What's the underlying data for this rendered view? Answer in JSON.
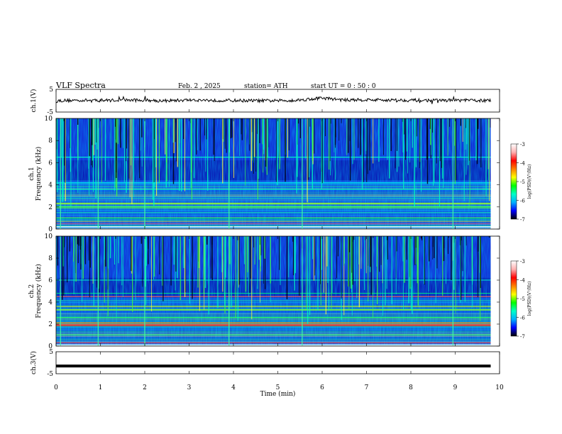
{
  "header": {
    "title": "VLF  Spectra",
    "date": "Feb. 2  , 2025",
    "station": "station= ATH",
    "start": "start  UT  =   0 : 50 : 0"
  },
  "colors": {
    "colormap": [
      "#000000",
      "#0000ff",
      "#00b0ff",
      "#00ffc8",
      "#00ff00",
      "#ffff00",
      "#ff8000",
      "#ff0000",
      "#ffb0b0",
      "#ffffff"
    ],
    "trace": "#000000"
  },
  "chart_data": [
    {
      "type": "line",
      "name": "ch1-waveform",
      "ylabel": "ch.1(V)",
      "ylim": [
        -5,
        5
      ],
      "yticks": [
        "5",
        "-5"
      ],
      "x": [
        0,
        0.5,
        1,
        1.5,
        2,
        2.5,
        3,
        3.5,
        4,
        4.5,
        5,
        5.5,
        6,
        6.5,
        7,
        7.5,
        8,
        8.5,
        9,
        9.5,
        9.8
      ],
      "y": [
        0,
        0.2,
        0.1,
        0.3,
        0.2,
        0,
        0.3,
        0.2,
        0.1,
        0,
        0,
        0.3,
        1.2,
        0.3,
        0.4,
        0.3,
        0.2,
        0.1,
        0.2,
        0.1,
        0
      ],
      "xlim": [
        0,
        10
      ]
    },
    {
      "type": "heatmap",
      "name": "ch1-spectrogram",
      "ylabel": "ch.1\nFrequency  (kHz)",
      "ylim": [
        0,
        10
      ],
      "yticks": [
        "10",
        "8",
        "6",
        "4",
        "2",
        "0"
      ],
      "xlim": [
        0,
        10
      ],
      "data_xmax": 9.8,
      "colorbar": {
        "label": "log(PSD)(V²/Hz)",
        "range": [
          -7,
          -3
        ],
        "ticks": [
          "-3",
          "-4",
          "-5",
          "-6",
          "-7"
        ]
      }
    },
    {
      "type": "heatmap",
      "name": "ch2-spectrogram",
      "ylabel": "ch.2\nFrequency  (kHz)",
      "ylim": [
        0,
        10
      ],
      "yticks": [
        "10",
        "8",
        "6",
        "4",
        "2",
        "0"
      ],
      "xlim": [
        0,
        10
      ],
      "data_xmax": 9.8,
      "colorbar": {
        "label": "log(PSD)(V²/Hz)",
        "range": [
          -7,
          -3
        ],
        "ticks": [
          "-3",
          "-4",
          "-5",
          "-6",
          "-7"
        ]
      }
    },
    {
      "type": "line",
      "name": "ch3-waveform",
      "ylabel": "ch.3(V)",
      "ylim": [
        -5,
        5
      ],
      "yticks": [
        "5",
        "-5"
      ],
      "x": [
        0,
        9.8
      ],
      "y": [
        -1.5,
        -1.5
      ],
      "xlim": [
        0,
        10
      ],
      "xlabel": "Time  (min)",
      "xticks": [
        "0",
        "1",
        "2",
        "3",
        "4",
        "5",
        "6",
        "7",
        "8",
        "9",
        "10"
      ]
    }
  ]
}
